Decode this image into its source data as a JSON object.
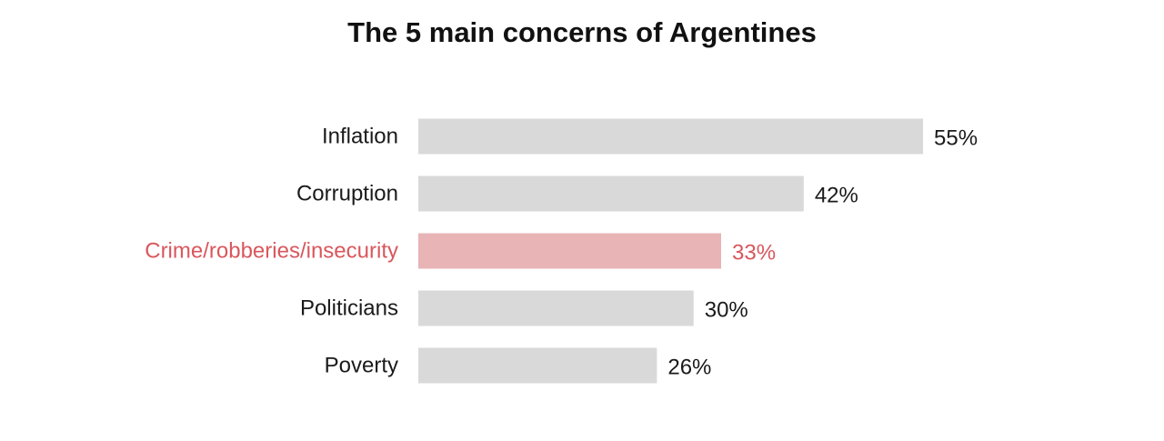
{
  "chart_data": {
    "type": "bar",
    "orientation": "horizontal",
    "title": "The 5 main concerns of Argentines",
    "categories": [
      "Inflation",
      "Corruption",
      "Crime/robberies/insecurity",
      "Politicians",
      "Poverty"
    ],
    "values": [
      55,
      42,
      33,
      30,
      26
    ],
    "value_labels": [
      "55%",
      "42%",
      "33%",
      "30%",
      "26%"
    ],
    "highlight_index": 2,
    "xlim": [
      0,
      55
    ],
    "grid": false,
    "colors": {
      "bar": "#d9d9d9",
      "bar_highlight": "#e8b4b6",
      "text": "#1a1a1a",
      "text_highlight": "#d9575c"
    }
  }
}
